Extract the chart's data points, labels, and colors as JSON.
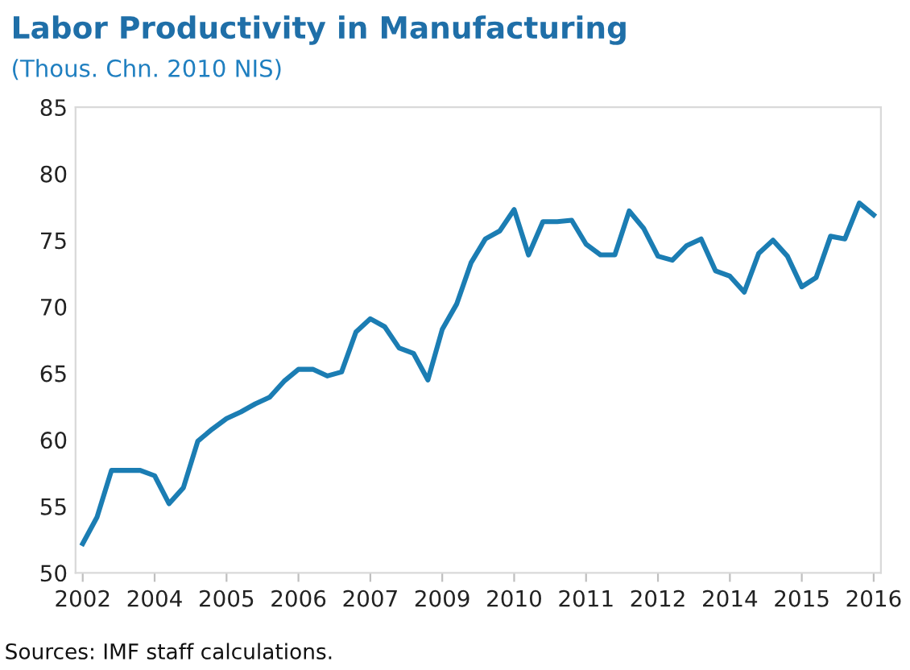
{
  "chart_data": {
    "type": "line",
    "title": "Labor Productivity in Manufacturing",
    "subtitle": "(Thous. Chn. 2010 NIS)",
    "categories": [
      "2002",
      null,
      null,
      null,
      null,
      "2004",
      null,
      null,
      null,
      null,
      "2005",
      null,
      null,
      null,
      null,
      "2006",
      null,
      null,
      null,
      null,
      "2007",
      null,
      null,
      null,
      null,
      "2009",
      null,
      null,
      null,
      null,
      "2010",
      null,
      null,
      null,
      null,
      "2011",
      null,
      null,
      null,
      null,
      "2012",
      null,
      null,
      null,
      null,
      "2014",
      null,
      null,
      null,
      null,
      "2015",
      null,
      null,
      null,
      null,
      "2016"
    ],
    "series": [
      {
        "color": "#1b7db3",
        "values": [
          52.2,
          54.2,
          57.7,
          57.7,
          57.7,
          57.3,
          55.2,
          56.4,
          59.9,
          60.8,
          61.6,
          62.1,
          62.7,
          63.2,
          64.4,
          65.3,
          65.3,
          64.8,
          65.1,
          68.1,
          69.1,
          68.5,
          66.9,
          66.5,
          64.5,
          68.3,
          70.2,
          73.3,
          75.1,
          75.7,
          77.3,
          73.9,
          76.4,
          76.4,
          76.5,
          74.7,
          73.9,
          73.9,
          77.2,
          75.9,
          73.8,
          73.5,
          74.6,
          75.1,
          72.7,
          72.3,
          71.1,
          74.0,
          75.0,
          73.8,
          71.5,
          72.2,
          75.3,
          75.1,
          77.8,
          76.9
        ]
      }
    ],
    "ylim": [
      50,
      85
    ],
    "yticks": [
      50,
      55,
      60,
      65,
      70,
      75,
      80,
      85
    ],
    "grid": false,
    "legend": false,
    "marker": "none",
    "line_style": "solid",
    "annotations": [
      "Sources: IMF staff calculations."
    ]
  }
}
